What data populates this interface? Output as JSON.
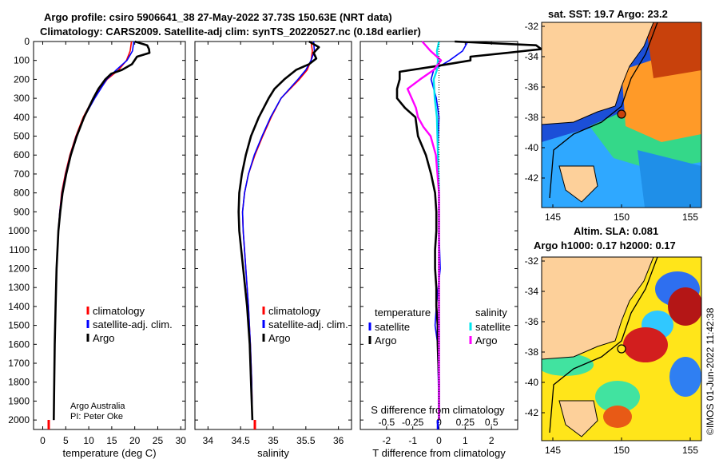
{
  "title": {
    "line1": "Argo profile: csiro 5906641_38 27-May-2022 37.73S 150.63E (NRT data)",
    "line2": "Climatology: CARS2009. Satellite-adj clim: synTS_20220527.nc (0.18d earlier)"
  },
  "colors": {
    "climatology": "#ff0000",
    "satellite": "#0000ff",
    "argo": "#000000",
    "sat_salinity": "#00e5ee",
    "argo_salinity": "#ff00ff"
  },
  "chart_data": [
    {
      "type": "line",
      "name": "temperature",
      "xlabel": "temperature (deg C)",
      "xlim": [
        -2,
        31
      ],
      "ylim": [
        2050,
        0
      ],
      "xticks": [
        0,
        5,
        10,
        15,
        20,
        25,
        30
      ],
      "yticks": [
        0,
        100,
        200,
        300,
        400,
        500,
        600,
        700,
        800,
        900,
        1000,
        1100,
        1200,
        1300,
        1400,
        1500,
        1600,
        1700,
        1800,
        1900,
        2000
      ],
      "legend": [
        "climatology",
        "satellite-adj. clim.",
        "Argo"
      ],
      "credit": [
        "Argo Australia",
        "PI: Peter Oke"
      ],
      "series": [
        {
          "name": "climatology",
          "color": "#ff0000",
          "depth": [
            0,
            50,
            100,
            150,
            200,
            300,
            400,
            500,
            600,
            700,
            800,
            900,
            1000,
            1200,
            1400,
            1600,
            1800,
            2000
          ],
          "values": [
            19.3,
            19.0,
            18.2,
            16.5,
            14.0,
            11.0,
            8.8,
            7.2,
            5.9,
            4.9,
            4.1,
            3.7,
            3.4,
            3.0,
            2.8,
            2.6,
            2.5,
            2.4
          ]
        },
        {
          "name": "satellite-adj. clim.",
          "color": "#0000ff",
          "depth": [
            0,
            50,
            100,
            150,
            200,
            300,
            400,
            500,
            600,
            700,
            800,
            900,
            1000,
            1200,
            1400,
            1600,
            1800,
            2000
          ],
          "values": [
            19.8,
            19.5,
            18.3,
            16.0,
            13.9,
            11.3,
            9.0,
            7.3,
            6.0,
            5.0,
            4.2,
            3.7,
            3.4,
            3.0,
            2.8,
            2.6,
            2.5,
            2.4
          ]
        },
        {
          "name": "Argo",
          "color": "#000000",
          "depth": [
            0,
            20,
            40,
            60,
            80,
            120,
            150,
            170,
            200,
            250,
            300,
            400,
            500,
            600,
            700,
            800,
            900,
            1000,
            1200,
            1400,
            1600,
            1800,
            2000
          ],
          "values": [
            20.0,
            22.7,
            23.1,
            23.2,
            20.5,
            19.4,
            17.2,
            14.9,
            13.6,
            12.1,
            11.0,
            9.0,
            7.4,
            6.1,
            5.1,
            4.3,
            3.8,
            3.4,
            3.0,
            2.8,
            2.6,
            2.5,
            2.4
          ]
        }
      ]
    },
    {
      "type": "line",
      "name": "salinity",
      "xlabel": "salinity",
      "xlim": [
        33.8,
        36.2
      ],
      "ylim": [
        2050,
        0
      ],
      "xticks": [
        34,
        34.5,
        35,
        35.5,
        36
      ],
      "tick_labels": [
        "34",
        "34.5",
        "35",
        "35.5",
        "36"
      ],
      "legend": [
        "climatology",
        "satellite-adj. clim.",
        "Argo"
      ],
      "series": [
        {
          "name": "climatology",
          "color": "#ff0000",
          "depth": [
            0,
            50,
            100,
            150,
            200,
            300,
            400,
            500,
            600,
            700,
            800,
            900,
            1000,
            1200,
            1400,
            1600,
            1800,
            2000
          ],
          "values": [
            35.58,
            35.6,
            35.58,
            35.52,
            35.4,
            35.12,
            34.97,
            34.84,
            34.72,
            34.62,
            34.56,
            34.53,
            34.54,
            34.58,
            34.62,
            34.65,
            34.67,
            34.68
          ]
        },
        {
          "name": "satellite-adj. clim.",
          "color": "#0000ff",
          "depth": [
            0,
            50,
            100,
            150,
            200,
            300,
            400,
            500,
            600,
            700,
            800,
            900,
            1000,
            1200,
            1400,
            1600,
            1800,
            2000
          ],
          "values": [
            35.62,
            35.63,
            35.58,
            35.5,
            35.38,
            35.12,
            34.96,
            34.83,
            34.71,
            34.62,
            34.56,
            34.53,
            34.54,
            34.58,
            34.62,
            34.65,
            34.67,
            34.68
          ]
        },
        {
          "name": "Argo",
          "color": "#000000",
          "depth": [
            0,
            30,
            60,
            90,
            120,
            150,
            200,
            250,
            300,
            400,
            500,
            600,
            700,
            800,
            900,
            1000,
            1200,
            1400,
            1600,
            1800,
            2000
          ],
          "values": [
            35.55,
            35.7,
            35.62,
            35.66,
            35.55,
            35.35,
            35.17,
            35.02,
            34.93,
            34.78,
            34.66,
            34.58,
            34.52,
            34.48,
            34.47,
            34.48,
            34.54,
            34.6,
            34.64,
            34.66,
            34.68
          ]
        }
      ]
    },
    {
      "type": "line",
      "name": "differences",
      "xlabel": "T difference from climatology",
      "xlabel_top": "S difference from climatology",
      "xlim": [
        -3,
        3
      ],
      "ylim": [
        2050,
        0
      ],
      "xticks": [
        -2,
        -1,
        0,
        1,
        2
      ],
      "s_ticks": [
        -0.5,
        -0.25,
        0,
        0.25,
        0.5
      ],
      "s_tick_labels": [
        "-0.5",
        "-0.25",
        "0",
        "0.25",
        "0.5"
      ],
      "legend_temperature": {
        "title": "temperature",
        "items": [
          "satellite",
          "Argo"
        ]
      },
      "legend_salinity": {
        "title": "salinity",
        "items": [
          "satellite",
          "Argo"
        ]
      },
      "series": [
        {
          "name": "T satellite",
          "color": "#0000ff",
          "depth": [
            0,
            50,
            100,
            150,
            200,
            300,
            400,
            600,
            800,
            1000,
            1200,
            1400,
            1500,
            1600,
            2000
          ],
          "values": [
            1.1,
            0.9,
            0.4,
            -0.2,
            -0.3,
            -0.1,
            0.0,
            -0.05,
            0,
            0,
            0.05,
            -0.1,
            -0.15,
            -0.05,
            0
          ]
        },
        {
          "name": "T Argo",
          "color": "#000000",
          "depth": [
            0,
            20,
            40,
            60,
            80,
            100,
            130,
            160,
            200,
            250,
            300,
            350,
            400,
            500,
            600,
            700,
            800,
            900,
            1000,
            1100,
            1200,
            1300,
            1400,
            1500,
            1600,
            1800,
            2000
          ],
          "values": [
            0.6,
            3.7,
            3.9,
            2.6,
            1.2,
            1.2,
            -0.1,
            -1.5,
            -1.5,
            -1.6,
            -1.6,
            -1.3,
            -0.9,
            -0.8,
            -0.5,
            -0.3,
            -0.15,
            -0.1,
            -0.1,
            -0.15,
            -0.15,
            -0.1,
            -0.1,
            -0.05,
            -0.05,
            0,
            0
          ]
        },
        {
          "name": "S satellite",
          "color": "#00e5ee",
          "depth": [
            0,
            50,
            100,
            150,
            200,
            300,
            400,
            600,
            800,
            1000,
            2000
          ],
          "values": [
            0.0,
            -0.02,
            -0.01,
            -0.02,
            -0.05,
            -0.04,
            -0.02,
            -0.01,
            0,
            0,
            0
          ]
        },
        {
          "name": "S Argo",
          "color": "#ff00ff",
          "depth": [
            0,
            50,
            100,
            150,
            200,
            250,
            300,
            350,
            400,
            450,
            500,
            600,
            800,
            1000,
            2000
          ],
          "values": [
            -0.16,
            -0.08,
            0.02,
            -0.05,
            -0.18,
            -0.3,
            -0.26,
            -0.22,
            -0.2,
            -0.15,
            -0.08,
            -0.03,
            0,
            0,
            0
          ]
        }
      ]
    }
  ],
  "maps": {
    "sst": {
      "title": "sat. SST: 19.7 Argo: 23.2",
      "xticks": [
        "145",
        "150",
        "155"
      ],
      "yticks": [
        "-32",
        "-34",
        "-36",
        "-38",
        "-40",
        "-42"
      ]
    },
    "sla": {
      "title_line1": "Altim. SLA: 0.081",
      "title_line2": "Argo h1000: 0.17 h2000: 0.17",
      "xticks": [
        "145",
        "150",
        "155"
      ],
      "yticks": [
        "-32",
        "-34",
        "-36",
        "-38",
        "-40",
        "-42"
      ]
    }
  },
  "watermark": "©IMOS 01-Jun-2022 11:42:38"
}
